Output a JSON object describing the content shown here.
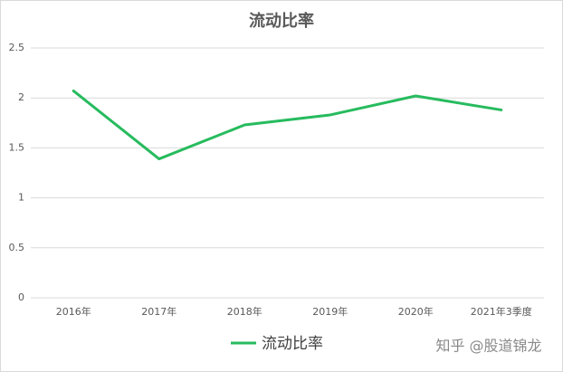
{
  "chart_data": {
    "type": "line",
    "title": "流动比率",
    "categories": [
      "2016年",
      "2017年",
      "2018年",
      "2019年",
      "2020年",
      "2021年3季度"
    ],
    "series": [
      {
        "name": "流动比率",
        "color": "#27bb5e",
        "values": [
          2.07,
          1.39,
          1.73,
          1.83,
          2.02,
          1.88
        ]
      }
    ],
    "ylim": [
      0,
      2.5
    ],
    "yticks": [
      0,
      0.5,
      1,
      1.5,
      2,
      2.5
    ],
    "grid": true,
    "legend": "bottom",
    "watermark": "知乎 @股道锦龙"
  }
}
